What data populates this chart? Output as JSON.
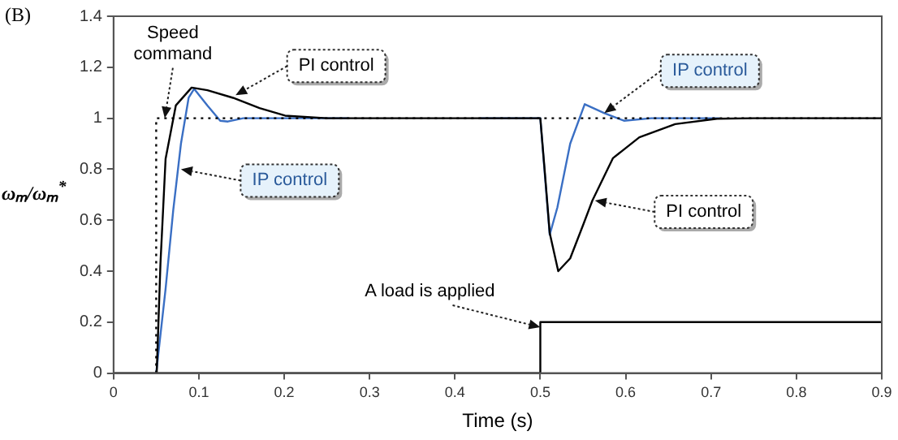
{
  "chart_data": {
    "type": "line",
    "title": "(B)",
    "xlabel": "Time (s)",
    "ylabel": "ωₘ/ωₘ$^{*}$",
    "xlim": [
      0,
      0.9
    ],
    "xticks": [
      0,
      0.1,
      0.2,
      0.3,
      0.4,
      0.5,
      0.6,
      0.7,
      0.8,
      0.9
    ],
    "ylim": [
      0,
      1.4
    ],
    "yticks": [
      0,
      0.2,
      0.4,
      0.6,
      0.8,
      1,
      1.2,
      1.4
    ],
    "grid": false,
    "legend": false,
    "marker": "none",
    "series": [
      {
        "color": "#000000",
        "line_style": "dotted",
        "x": [
          0.05,
          0.05,
          0.9
        ],
        "values": [
          0,
          1,
          1
        ]
      },
      {
        "color": "#000000",
        "line_style": "solid",
        "x": [
          0,
          0.5,
          0.5,
          0.9
        ],
        "values": [
          0,
          0,
          0.2,
          0.2
        ]
      },
      {
        "color": "#000000",
        "line_style": "solid",
        "x": [
          0.0506,
          0.055,
          0.061,
          0.073,
          0.0915,
          0.11,
          0.14,
          0.171,
          0.201,
          0.25,
          0.5,
          0.505,
          0.511,
          0.521,
          0.535,
          0.55,
          0.561,
          0.585,
          0.616,
          0.658,
          0.707,
          0.75,
          0.9
        ],
        "values": [
          0,
          0.43,
          0.84,
          1.05,
          1.12,
          1.11,
          1.08,
          1.04,
          1.01,
          1,
          1,
          0.8,
          0.55,
          0.4,
          0.45,
          0.58,
          0.677,
          0.843,
          0.925,
          0.977,
          0.998,
          1,
          1
        ]
      },
      {
        "color": "#3a6fc4",
        "line_style": "solid",
        "x": [
          0.05,
          0.061,
          0.07,
          0.079,
          0.088,
          0.0945,
          0.11,
          0.125,
          0.134,
          0.152,
          0.275,
          0.35,
          0.43,
          0.5,
          0.506,
          0.511,
          0.52,
          0.535,
          0.552,
          0.575,
          0.598,
          0.63,
          0.71
        ],
        "values": [
          0,
          0.33,
          0.64,
          0.9,
          1.08,
          1.115,
          1.05,
          0.99,
          0.987,
          1,
          1,
          null,
          1,
          1,
          0.75,
          0.543,
          0.65,
          0.9,
          1.055,
          1.02,
          0.99,
          1,
          1
        ]
      }
    ],
    "annotations": [
      {
        "text": "Speed command",
        "x": 0.06,
        "y": 1.0
      },
      {
        "text": "PI control",
        "x": 0.143,
        "y": 1.09
      },
      {
        "text": "IP control",
        "x": 0.079,
        "y": 0.8
      },
      {
        "text": "IP control",
        "x": 0.575,
        "y": 1.02
      },
      {
        "text": "PI control",
        "x": 0.564,
        "y": 0.677
      },
      {
        "text": "A load is applied",
        "x": 0.5,
        "y": 0.18
      }
    ]
  }
}
